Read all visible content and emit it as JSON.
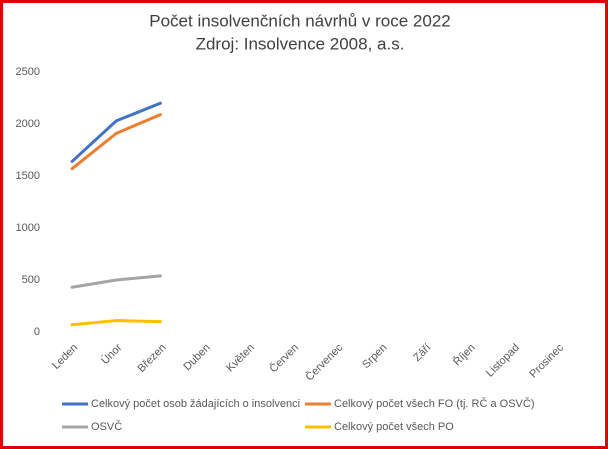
{
  "chart_data": {
    "type": "line",
    "title": "Počet insolvenčních návrhů v roce 2022",
    "subtitle": "Zdroj: Insolvence 2008, a.s.",
    "categories": [
      "Leden",
      "Únor",
      "Březen",
      "Duben",
      "Květen",
      "Červen",
      "Červenec",
      "Srpen",
      "Září",
      "Říjen",
      "Listopad",
      "Prosinec"
    ],
    "series": [
      {
        "name": "Celkový počet osob žádajících o insolvenci",
        "color": "#4472c4",
        "values": [
          1640,
          2030,
          2200,
          null,
          null,
          null,
          null,
          null,
          null,
          null,
          null,
          null
        ]
      },
      {
        "name": "Celkový počet všech FO (tj. RČ a OSVČ)",
        "color": "#ed7d31",
        "values": [
          1570,
          1910,
          2090,
          null,
          null,
          null,
          null,
          null,
          null,
          null,
          null,
          null
        ]
      },
      {
        "name": "OSVČ",
        "color": "#a5a5a5",
        "values": [
          430,
          500,
          540,
          null,
          null,
          null,
          null,
          null,
          null,
          null,
          null,
          null
        ]
      },
      {
        "name": "Celkový počet všech PO",
        "color": "#ffc000",
        "values": [
          70,
          110,
          100,
          null,
          null,
          null,
          null,
          null,
          null,
          null,
          null,
          null
        ]
      }
    ],
    "ylim": [
      0,
      2500
    ],
    "yticks": [
      0,
      500,
      1000,
      1500,
      2000,
      2500
    ],
    "grid": false
  }
}
